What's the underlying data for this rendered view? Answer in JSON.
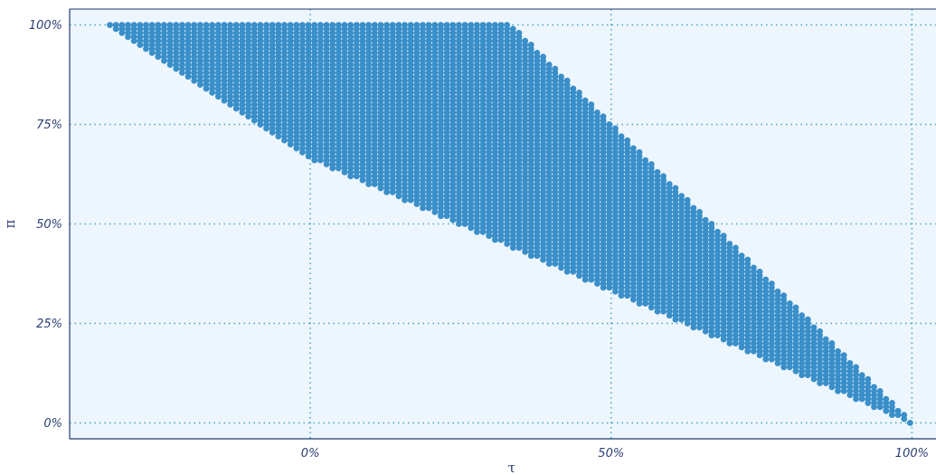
{
  "chart_data": {
    "type": "scatter",
    "title": "",
    "xlabel": "τ",
    "ylabel": "π",
    "xlim": [
      -0.4,
      1.04
    ],
    "ylim": [
      -0.04,
      1.04
    ],
    "x_ticks": [
      {
        "value": 0.0,
        "label": "0%"
      },
      {
        "value": 0.5,
        "label": "50%"
      },
      {
        "value": 1.0,
        "label": "100%"
      }
    ],
    "y_ticks": [
      {
        "value": 0.0,
        "label": "0%"
      },
      {
        "value": 0.25,
        "label": "25%"
      },
      {
        "value": 0.5,
        "label": "50%"
      },
      {
        "value": 0.75,
        "label": "75%"
      },
      {
        "value": 1.0,
        "label": "100%"
      }
    ],
    "grid": true,
    "legend": "none",
    "colors": {
      "panel_background": "#eef6fd",
      "points": "#3a8fc9",
      "grid": "#4da7c7",
      "axis": "#1f3a6e",
      "text": "#2b3f73"
    },
    "region": {
      "description_basis": "feasible region of filled points",
      "upper_boundary": [
        {
          "x": -0.333,
          "y": 1.0
        },
        {
          "x": 0.333,
          "y": 1.0
        },
        {
          "x": 0.5,
          "y": 0.75
        },
        {
          "x": 1.0,
          "y": 0.0
        }
      ],
      "lower_boundary": [
        {
          "x": -0.333,
          "y": 1.0
        },
        {
          "x": 0.0,
          "y": 0.667
        },
        {
          "x": 0.5,
          "y": 0.333
        },
        {
          "x": 1.0,
          "y": 0.0
        }
      ],
      "grid_step": 0.01
    }
  }
}
